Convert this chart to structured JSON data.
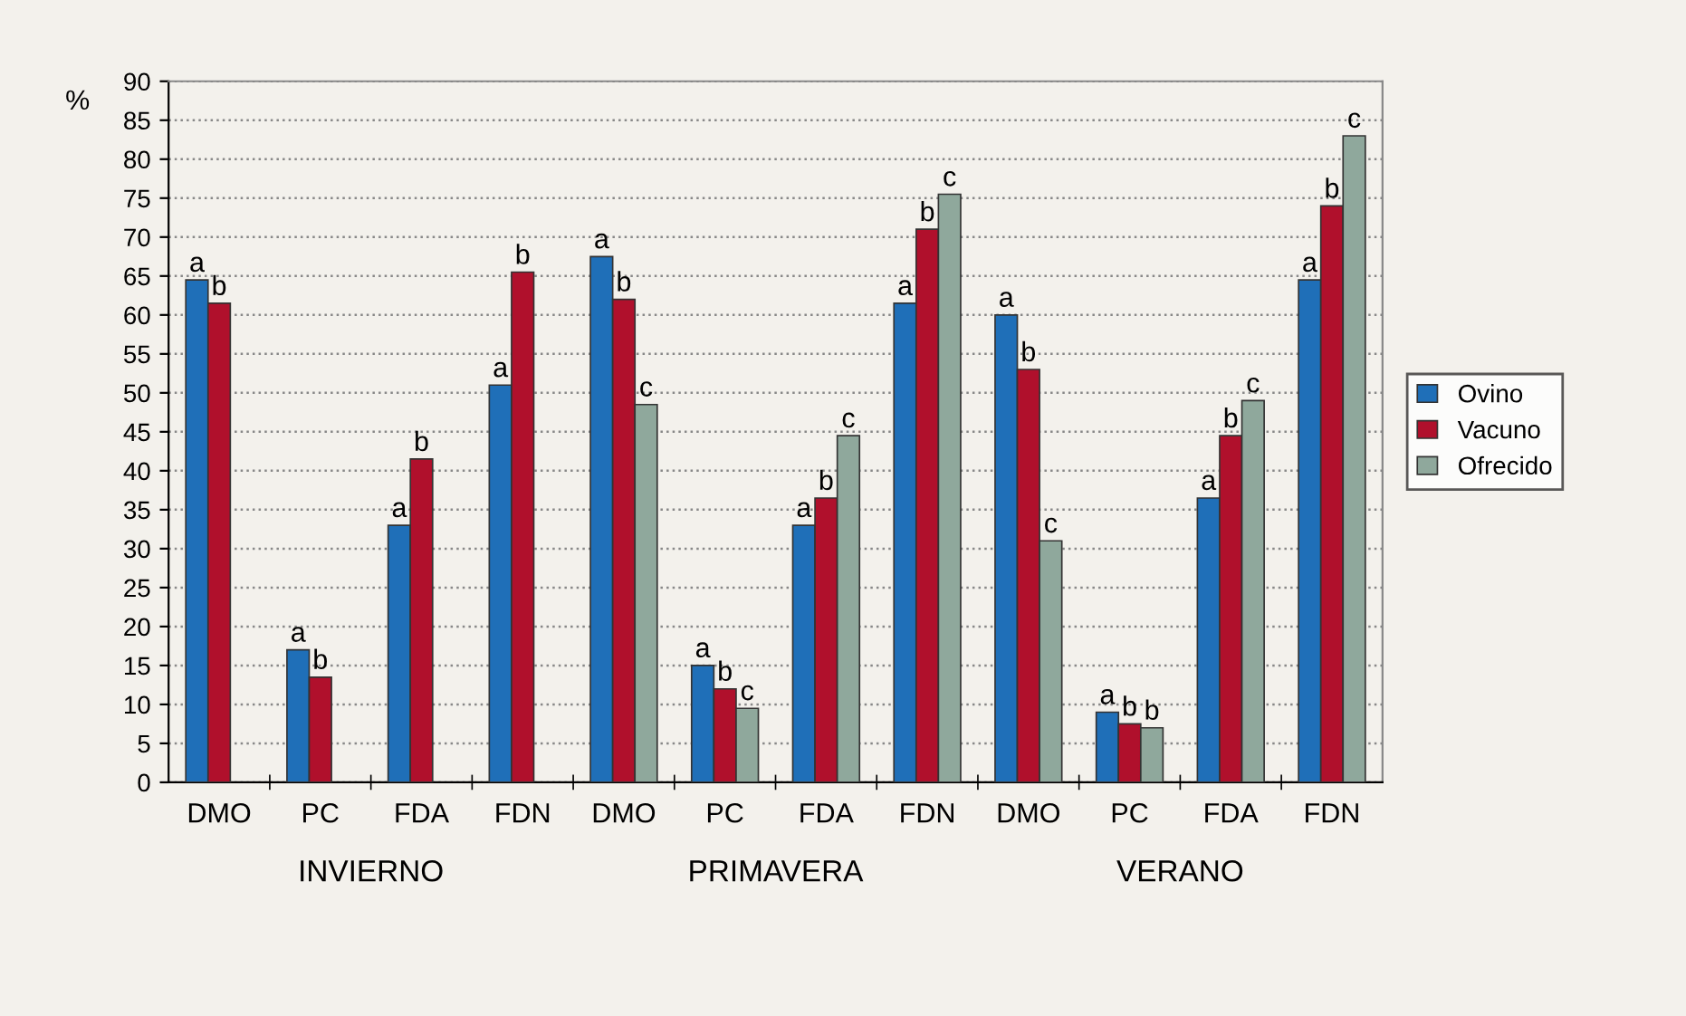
{
  "chart_data": {
    "type": "bar",
    "ylabel": "%",
    "categories": [
      "DMO",
      "PC",
      "FDA",
      "FDN",
      "DMO",
      "PC",
      "FDA",
      "FDN",
      "DMO",
      "PC",
      "FDA",
      "FDN"
    ],
    "series": [
      {
        "name": "Ovino",
        "color": "#1f6fb8",
        "values": [
          64.5,
          17,
          33,
          51,
          67.5,
          15,
          33,
          61.5,
          60,
          9,
          36.5,
          64.5
        ],
        "value_labels": [
          "a",
          "a",
          "a",
          "a",
          "a",
          "a",
          "a",
          "a",
          "a",
          "a",
          "a",
          "a"
        ]
      },
      {
        "name": "Vacuno",
        "color": "#b0102c",
        "values": [
          61.5,
          13.5,
          41.5,
          65.5,
          62,
          12,
          36.5,
          71,
          53,
          7.5,
          44.5,
          74
        ],
        "value_labels": [
          "b",
          "b",
          "b",
          "b",
          "b",
          "b",
          "b",
          "b",
          "b",
          "b",
          "b",
          "b"
        ]
      },
      {
        "name": "Ofrecido",
        "color": "#8fa89c",
        "values": [
          null,
          null,
          null,
          null,
          48.5,
          9.5,
          44.5,
          75.5,
          31,
          7,
          49,
          83
        ],
        "value_labels": [
          null,
          null,
          null,
          null,
          "c",
          "c",
          "c",
          "c",
          "c",
          "b",
          "c",
          "c"
        ]
      }
    ],
    "annotations": [
      "INVIERNO",
      "PRIMAVERA",
      "VERANO"
    ],
    "ylim": [
      0,
      90
    ],
    "yticks": [
      0,
      5,
      10,
      15,
      20,
      25,
      30,
      35,
      40,
      45,
      50,
      55,
      60,
      65,
      70,
      75,
      80,
      85,
      90
    ],
    "grid": "y",
    "legend": "right"
  }
}
